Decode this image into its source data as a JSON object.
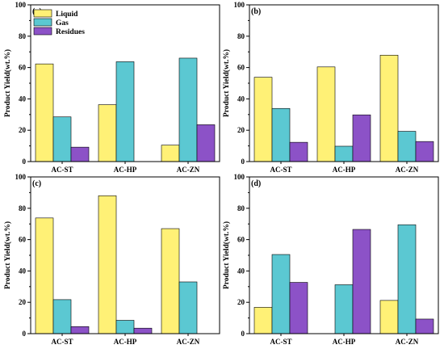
{
  "colors": {
    "liquid": "#FFF176",
    "gas": "#5BC8D2",
    "residues": "#8C52C7",
    "stroke": "#000000"
  },
  "legend": {
    "placement": "top-left of panel (a)",
    "entries": [
      "Liquid",
      "Gas",
      "Residues"
    ]
  },
  "chart_data": [
    {
      "type": "bar",
      "panel_label": "(a)",
      "ylabel": "Product Yield(wt.%)",
      "xlabel": "",
      "ylim": [
        0,
        100
      ],
      "yticks": [
        0,
        20,
        40,
        60,
        80,
        100
      ],
      "categories": [
        "AC-ST",
        "AC-HP",
        "AC-ZN"
      ],
      "series": [
        {
          "name": "Liquid",
          "values": [
            62.3,
            36.3,
            10.5
          ]
        },
        {
          "name": "Gas",
          "values": [
            28.5,
            63.7,
            66.0
          ]
        },
        {
          "name": "Residues",
          "values": [
            9.2,
            0,
            23.5
          ]
        }
      ]
    },
    {
      "type": "bar",
      "panel_label": "(b)",
      "ylabel": "Product Yield(wt.%)",
      "xlabel": "",
      "ylim": [
        0,
        100
      ],
      "yticks": [
        0,
        20,
        40,
        60,
        80,
        100
      ],
      "categories": [
        "AC-ST",
        "AC-HP",
        "AC-ZN"
      ],
      "series": [
        {
          "name": "Liquid",
          "values": [
            53.8,
            60.4,
            67.9
          ]
        },
        {
          "name": "Gas",
          "values": [
            33.9,
            9.8,
            19.3
          ]
        },
        {
          "name": "Residues",
          "values": [
            12.3,
            29.8,
            12.8
          ]
        }
      ]
    },
    {
      "type": "bar",
      "panel_label": "(c)",
      "ylabel": "Product Yield(wt.%)",
      "xlabel": "",
      "ylim": [
        0,
        100
      ],
      "yticks": [
        0,
        20,
        40,
        60,
        80,
        100
      ],
      "categories": [
        "AC-ST",
        "AC-HP",
        "AC-ZN"
      ],
      "series": [
        {
          "name": "Liquid",
          "values": [
            73.8,
            88.0,
            67.0
          ]
        },
        {
          "name": "Gas",
          "values": [
            21.7,
            8.5,
            33.0
          ]
        },
        {
          "name": "Residues",
          "values": [
            4.5,
            3.5,
            0
          ]
        }
      ]
    },
    {
      "type": "bar",
      "panel_label": "(d)",
      "ylabel": "Product Yield(wt.%)",
      "xlabel": "",
      "ylim": [
        0,
        100
      ],
      "yticks": [
        0,
        20,
        40,
        60,
        80,
        100
      ],
      "categories": [
        "AC-ST",
        "AC-HP",
        "AC-ZN"
      ],
      "series": [
        {
          "name": "Liquid",
          "values": [
            16.8,
            0,
            21.2
          ]
        },
        {
          "name": "Gas",
          "values": [
            50.5,
            31.2,
            69.5
          ]
        },
        {
          "name": "Residues",
          "values": [
            32.7,
            66.5,
            9.3
          ]
        }
      ]
    }
  ]
}
